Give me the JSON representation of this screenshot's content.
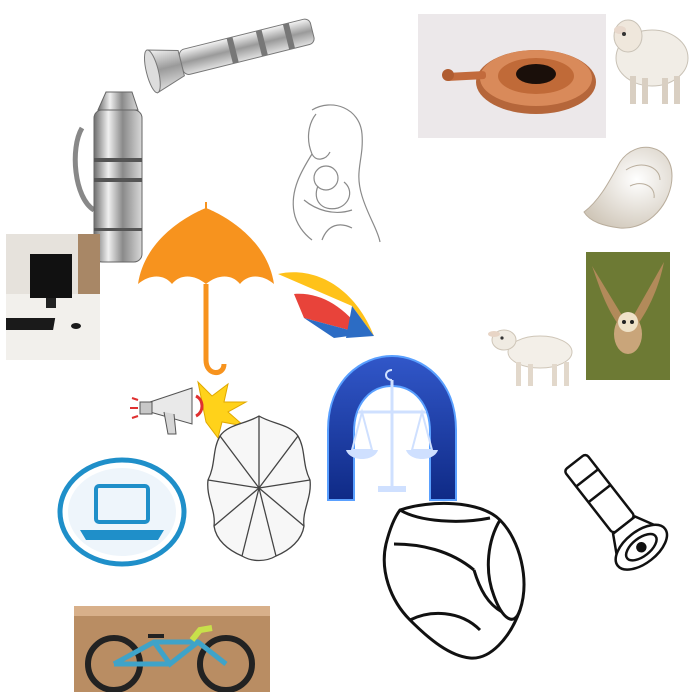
{
  "title": "",
  "items": [
    {
      "id": "silver-torch",
      "kind": "photo"
    },
    {
      "id": "copper-plate",
      "kind": "photo"
    },
    {
      "id": "sheep",
      "kind": "photo"
    },
    {
      "id": "steel-water-jug",
      "kind": "photo"
    },
    {
      "id": "mother-child-sketch",
      "kind": "drawing"
    },
    {
      "id": "conch-shell-photo",
      "kind": "photo"
    },
    {
      "id": "desktop-computer",
      "kind": "photo"
    },
    {
      "id": "orange-umbrella",
      "kind": "drawing"
    },
    {
      "id": "colorful-umbrella",
      "kind": "drawing"
    },
    {
      "id": "owl-flying",
      "kind": "photo"
    },
    {
      "id": "lamb",
      "kind": "photo"
    },
    {
      "id": "megaphone",
      "kind": "drawing"
    },
    {
      "id": "libra-scales",
      "kind": "drawing"
    },
    {
      "id": "umbrella-top-view",
      "kind": "drawing"
    },
    {
      "id": "laptop-circle-icon",
      "kind": "icon"
    },
    {
      "id": "conch-outline",
      "kind": "drawing"
    },
    {
      "id": "flashlight-outline",
      "kind": "drawing"
    },
    {
      "id": "bicycle",
      "kind": "photo"
    }
  ],
  "colors": {
    "umbrella_orange": "#f7931e",
    "laptop_blue": "#1f8fc9",
    "libra_blue": "#1a3ea8",
    "copper": "#c26a3c"
  }
}
